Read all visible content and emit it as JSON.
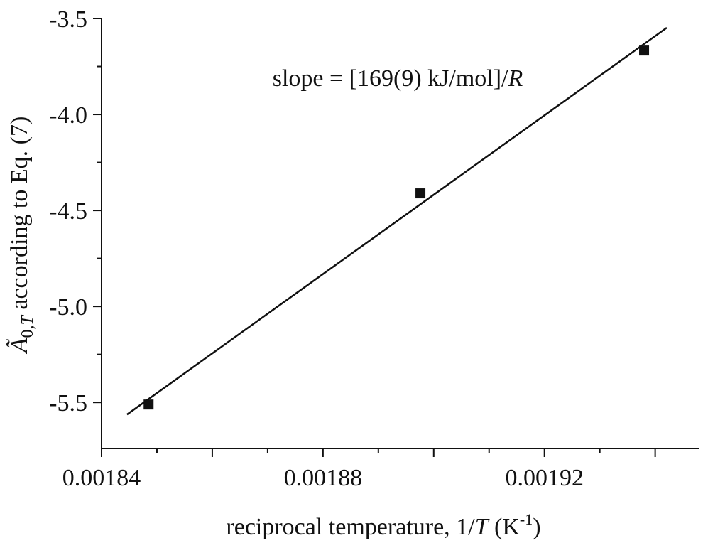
{
  "chart_data": {
    "type": "scatter",
    "xlabel": [
      "reciprocal temperature, 1/",
      "T",
      " (K",
      "-1",
      ")"
    ],
    "ylabel": [
      "Ã",
      "0,",
      "T",
      " according to Eq. (7)"
    ],
    "annotation": [
      "slope = [169(9) kJ/mol]/",
      "R"
    ],
    "x": [
      0.0018485,
      0.0018976,
      0.001938
    ],
    "values": [
      -5.511,
      -4.411,
      -3.667
    ],
    "color": "#111111",
    "fit": {
      "x": [
        0.0018446,
        0.0019421
      ],
      "y": [
        -5.563,
        -3.548
      ]
    },
    "xlim": [
      0.00184,
      0.001948
    ],
    "ylim": [
      -5.74,
      -3.5
    ],
    "xticks": [
      0.00184,
      0.00186,
      0.00188,
      0.0019,
      0.00192,
      0.00194
    ],
    "xticklabels_shown": [
      0.00184,
      0.00188,
      0.00192
    ],
    "xminorticks": [
      0.00185,
      0.00187,
      0.00189,
      0.00191,
      0.00193
    ],
    "yticks": [
      -3.5,
      {
        "value": -4,
        "label": "-4.0"
      },
      -4.5,
      {
        "value": -5,
        "label": "-5.0"
      },
      -5.5
    ],
    "yminorticks": [
      -3.75,
      -4.25,
      -4.75,
      -5.25
    ],
    "grid": false
  }
}
